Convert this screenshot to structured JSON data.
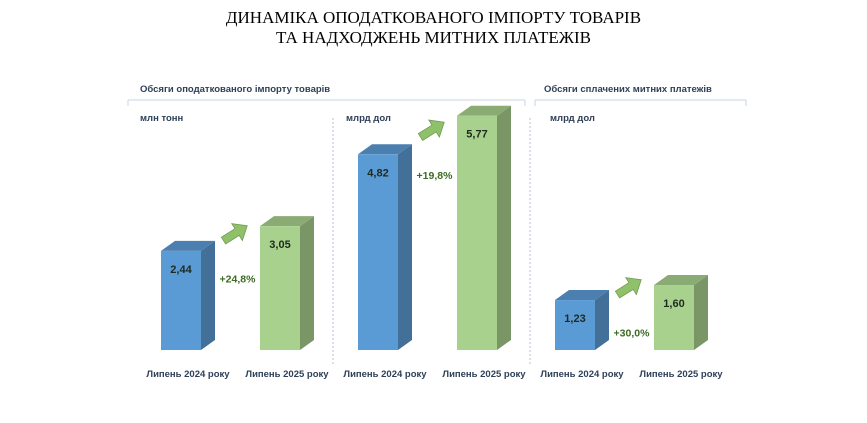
{
  "title": {
    "line1": "ДИНАМІКА ОПОДАТКОВАНОГО ІМПОРТУ ТОВАРІВ",
    "line2": "ТА НАДХОДЖЕНЬ МИТНИХ ПЛАТЕЖІВ"
  },
  "sections": {
    "import_volume": "Обсяги оподаткованого імпорту товарів",
    "customs_payments": "Обсяги сплачених митних платежів"
  },
  "colors": {
    "series_2024": "#5b9bd5",
    "series_2025": "#a9d18e",
    "arrow": "#8fc16b"
  },
  "chart_data": [
    {
      "type": "bar",
      "unit": "млн тонн",
      "categories": [
        "Липень 2024 року",
        "Липень 2025 року"
      ],
      "values": [
        2.44,
        3.05
      ],
      "value_labels": [
        "2,44",
        "3,05"
      ],
      "change": "+24,8%"
    },
    {
      "type": "bar",
      "unit": "млрд дол",
      "categories": [
        "Липень 2024 року",
        "Липень 2025 року"
      ],
      "values": [
        4.82,
        5.77
      ],
      "value_labels": [
        "4,82",
        "5,77"
      ],
      "change": "+19,8%"
    },
    {
      "type": "bar",
      "unit": "млрд дол",
      "categories": [
        "Липень 2024 року",
        "Липень 2025 року"
      ],
      "values": [
        1.23,
        1.6
      ],
      "value_labels": [
        "1,23",
        "1,60"
      ],
      "change": "+30,0%"
    }
  ]
}
